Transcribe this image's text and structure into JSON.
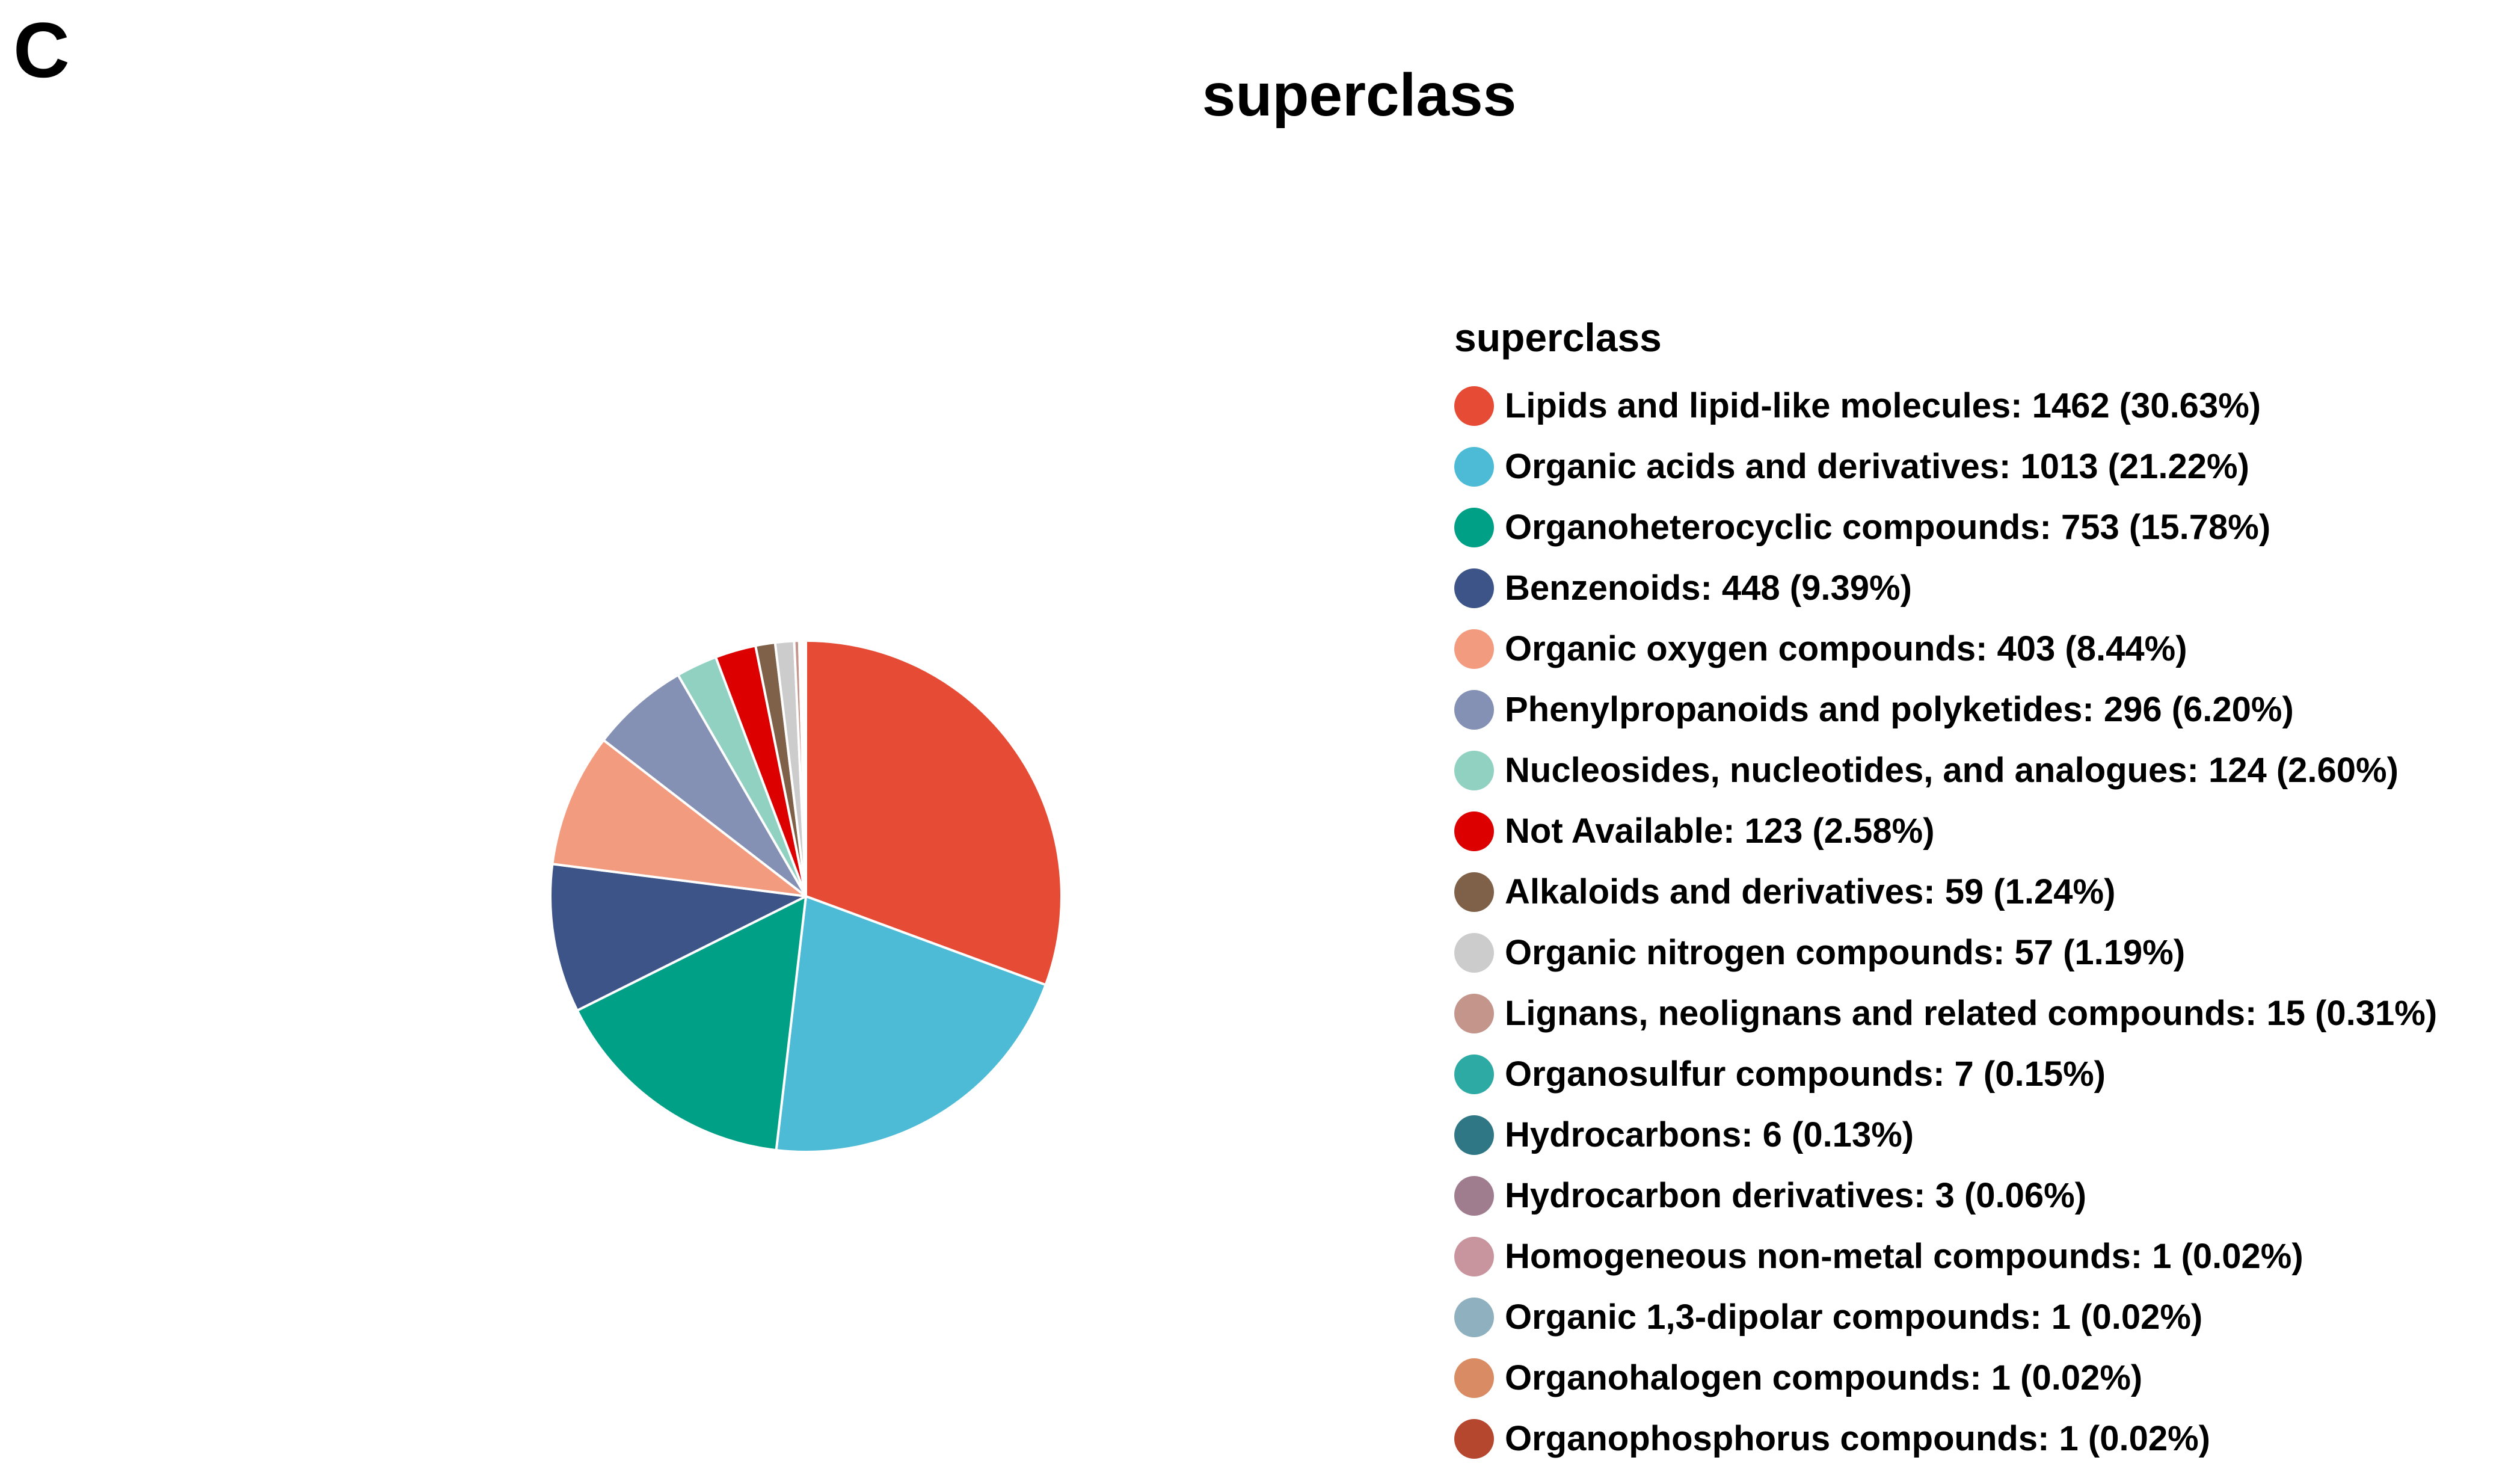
{
  "panel_label": "C",
  "chart_data": {
    "type": "pie",
    "title": "superclass",
    "legend_title": "superclass",
    "legend_position": "right",
    "slices": [
      {
        "name": "Lipids and lipid-like molecules",
        "value": 1462,
        "percent": "30.63%",
        "label": "Lipids and lipid-like molecules: 1462 (30.63%)",
        "color": "#e64b35"
      },
      {
        "name": "Organic acids and derivatives",
        "value": 1013,
        "percent": "21.22%",
        "label": "Organic acids and derivatives: 1013 (21.22%)",
        "color": "#4dbbd5"
      },
      {
        "name": "Organoheterocyclic compounds",
        "value": 753,
        "percent": "15.78%",
        "label": "Organoheterocyclic compounds: 753 (15.78%)",
        "color": "#00a087"
      },
      {
        "name": "Benzenoids",
        "value": 448,
        "percent": "9.39%",
        "label": "Benzenoids: 448 (9.39%)",
        "color": "#3c5488"
      },
      {
        "name": "Organic oxygen compounds",
        "value": 403,
        "percent": "8.44%",
        "label": "Organic oxygen compounds: 403 (8.44%)",
        "color": "#f39b7f"
      },
      {
        "name": "Phenylpropanoids and polyketides",
        "value": 296,
        "percent": "6.20%",
        "label": "Phenylpropanoids and polyketides: 296 (6.20%)",
        "color": "#8491b4"
      },
      {
        "name": "Nucleosides, nucleotides, and analogues",
        "value": 124,
        "percent": "2.60%",
        "label": "Nucleosides, nucleotides, and analogues: 124 (2.60%)",
        "color": "#91d1c2"
      },
      {
        "name": "Not Available",
        "value": 123,
        "percent": "2.58%",
        "label": "Not Available: 123 (2.58%)",
        "color": "#dc0000"
      },
      {
        "name": "Alkaloids and derivatives",
        "value": 59,
        "percent": "1.24%",
        "label": "Alkaloids and derivatives: 59 (1.24%)",
        "color": "#7e6148"
      },
      {
        "name": "Organic nitrogen compounds",
        "value": 57,
        "percent": "1.19%",
        "label": "Organic nitrogen compounds: 57 (1.19%)",
        "color": "#cccccc"
      },
      {
        "name": "Lignans, neolignans and related compounds",
        "value": 15,
        "percent": "0.31%",
        "label": "Lignans, neolignans and related compounds: 15 (0.31%)",
        "color": "#c4958a"
      },
      {
        "name": "Organosulfur compounds",
        "value": 7,
        "percent": "0.15%",
        "label": "Organosulfur compounds: 7 (0.15%)",
        "color": "#2eaaa5"
      },
      {
        "name": "Hydrocarbons",
        "value": 6,
        "percent": "0.13%",
        "label": "Hydrocarbons: 6 (0.13%)",
        "color": "#2f7784"
      },
      {
        "name": "Hydrocarbon derivatives",
        "value": 3,
        "percent": "0.06%",
        "label": "Hydrocarbon derivatives: 3 (0.06%)",
        "color": "#a07c8f"
      },
      {
        "name": "Homogeneous non-metal compounds",
        "value": 1,
        "percent": "0.02%",
        "label": "Homogeneous non-metal compounds: 1 (0.02%)",
        "color": "#c8959f"
      },
      {
        "name": "Organic 1,3-dipolar compounds",
        "value": 1,
        "percent": "0.02%",
        "label": "Organic 1,3-dipolar compounds: 1 (0.02%)",
        "color": "#8fb0bf"
      },
      {
        "name": "Organohalogen compounds",
        "value": 1,
        "percent": "0.02%",
        "label": "Organohalogen compounds: 1 (0.02%)",
        "color": "#d98c63"
      },
      {
        "name": "Organophosphorus compounds",
        "value": 1,
        "percent": "0.02%",
        "label": "Organophosphorus compounds: 1 (0.02%)",
        "color": "#b5472e"
      }
    ]
  }
}
